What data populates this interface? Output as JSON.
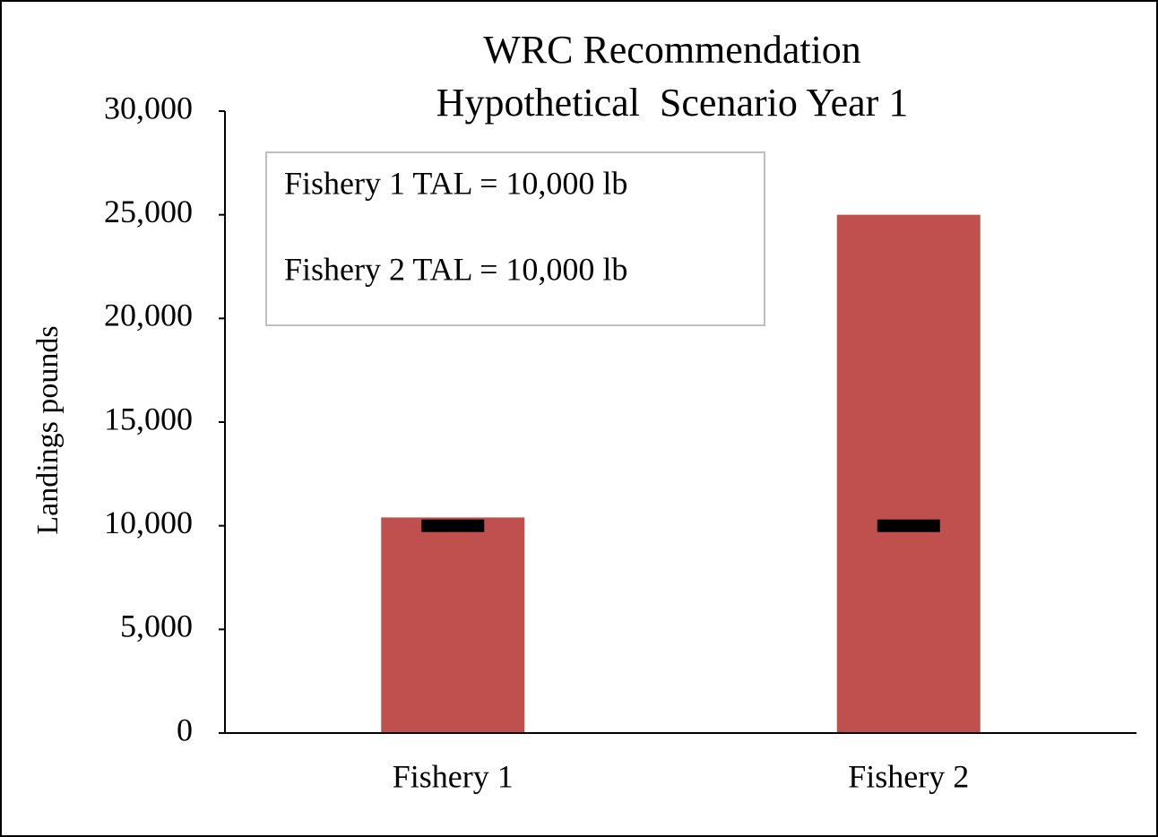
{
  "chart_data": {
    "type": "bar",
    "title": "WRC Recommendation",
    "subtitle": "Hypothetical  Scenario Year 1",
    "ylabel": "Landings pounds",
    "categories": [
      "Fishery 1",
      "Fishery 2"
    ],
    "series": [
      {
        "values": [
          10400,
          25000
        ],
        "color": "#c0504d"
      },
      {
        "values": [
          10000,
          10000
        ],
        "color": "#000000",
        "marker": "dash"
      }
    ],
    "annotations": [
      "Fishery 1 TAL = 10,000 lb",
      "Fishery 2 TAL = 10,000 lb"
    ],
    "ylim": [
      0,
      30000
    ],
    "yticks": [
      0,
      {
        "value": 5000,
        "label": "5,000"
      },
      {
        "value": 10000,
        "label": "10,000"
      },
      {
        "value": 15000,
        "label": "15,000"
      },
      {
        "value": 20000,
        "label": "20,000"
      },
      {
        "value": 25000,
        "label": "25,000"
      },
      {
        "value": 30000,
        "label": "30,000"
      }
    ],
    "grid": false
  }
}
